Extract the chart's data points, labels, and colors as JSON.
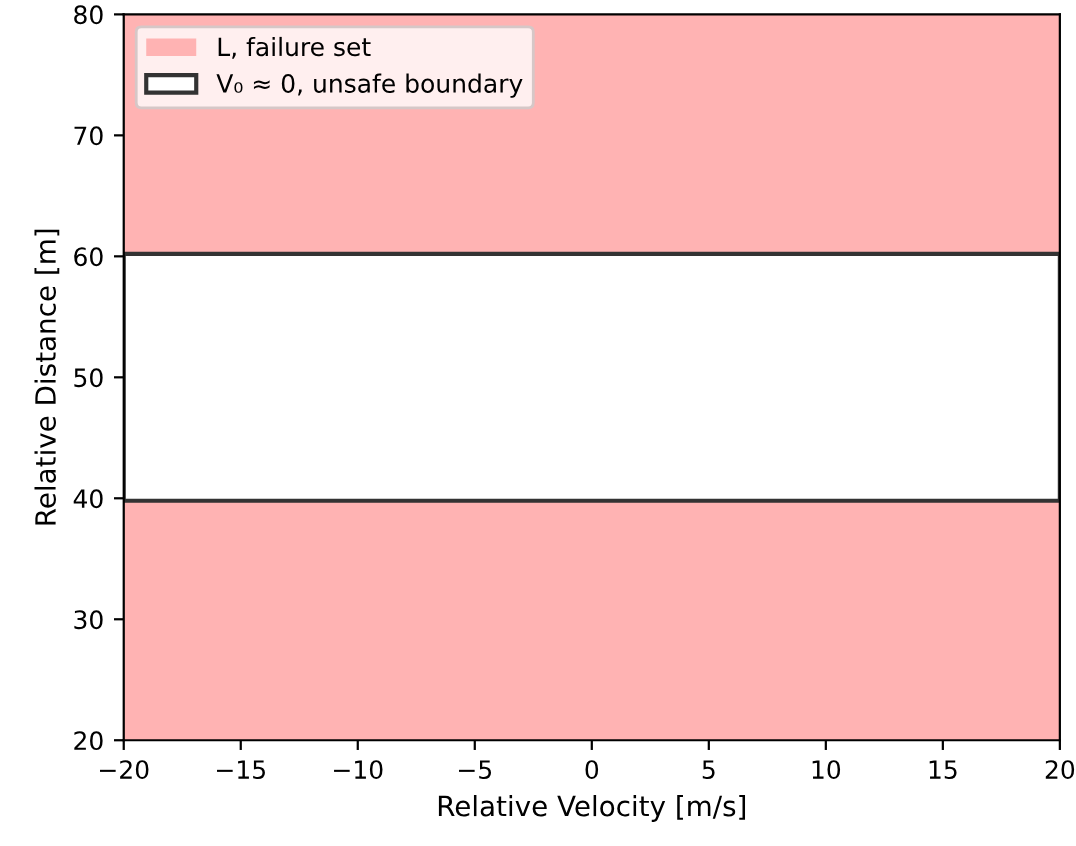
{
  "chart_data": {
    "type": "area",
    "xlabel": "Relative Velocity [m/s]",
    "ylabel": "Relative Distance [m]",
    "xlim": [
      -20,
      20
    ],
    "xticks": [
      {
        "value": -20,
        "label": "−20"
      },
      {
        "value": -15,
        "label": "−15"
      },
      {
        "value": -10,
        "label": "−10"
      },
      {
        "value": -5,
        "label": "−5"
      },
      0,
      5,
      10,
      15,
      20
    ],
    "ylim": [
      20,
      80
    ],
    "yticks": [
      20,
      30,
      40,
      50,
      60,
      70,
      80
    ],
    "bands": [
      {
        "axis": "y",
        "from": 20,
        "to": 39.8,
        "label": "L, failure set",
        "color": "#ffb3b3"
      },
      {
        "axis": "y",
        "from": 60.2,
        "to": 80,
        "color": "#ffb3b3"
      },
      {
        "axis": "y",
        "from": 39.8,
        "to": 60.2,
        "label": "V₀ ≈ 0, unsafe boundary",
        "color": "#ffffff"
      }
    ],
    "grid": false,
    "legend": "top left"
  }
}
